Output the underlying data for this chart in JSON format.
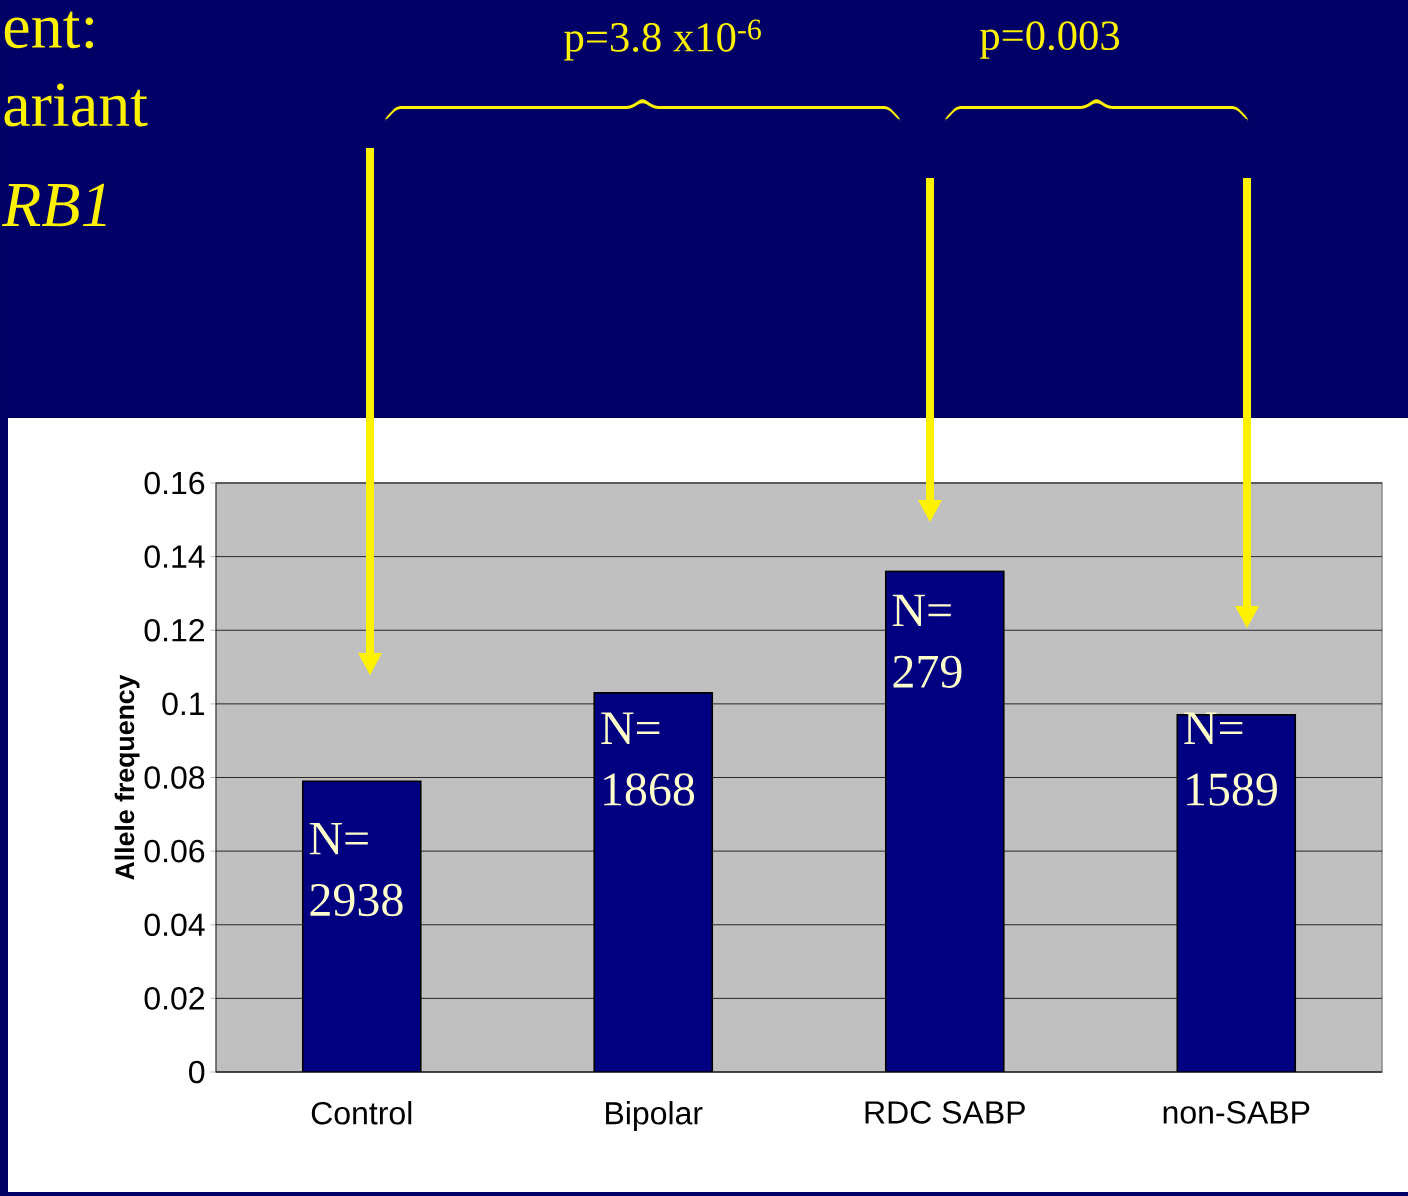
{
  "chart_data": {
    "type": "bar",
    "ylabel": "**Allele frequency**",
    "categories": [
      "Control",
      "Bipolar",
      "RDC SABP",
      "non-SABP"
    ],
    "values": [
      0.079,
      0.103,
      0.136,
      0.097
    ],
    "color": "#000080",
    "ylim": [
      0,
      0.16
    ],
    "yticks": [
      0,
      0.02,
      0.04,
      0.06,
      0.08,
      0.1,
      0.12,
      0.14,
      0.16
    ],
    "grid": "y",
    "annotations": [
      "ent:",
      "ariant",
      "*RB1*",
      "p=3.8 x10$^{-6}$",
      "p=0.003",
      "N= 2938",
      "N= 1868",
      "N= 279",
      "N= 1589"
    ]
  }
}
